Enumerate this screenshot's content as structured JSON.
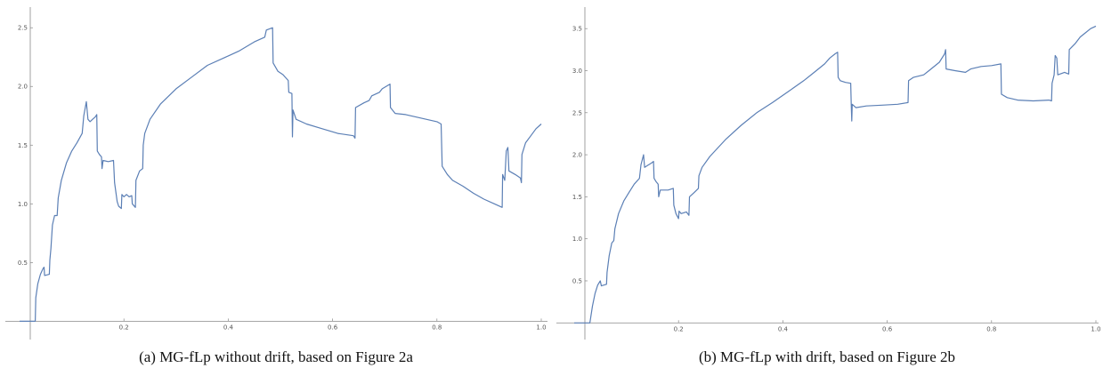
{
  "figures": [
    {
      "caption": "(a) MG-fLp without drift, based on Figure 2a"
    },
    {
      "caption": "(b) MG-fLp with drift, based on Figure 2b"
    }
  ],
  "chart_data": [
    {
      "type": "line",
      "title": "",
      "xlabel": "",
      "ylabel": "",
      "xlim": [
        0,
        1.0
      ],
      "ylim": [
        -0.05,
        2.6
      ],
      "x_ticks": [
        "0.2",
        "0.4",
        "0.6",
        "0.8",
        "1.0"
      ],
      "y_ticks": [
        "0.5",
        "1.0",
        "1.5",
        "2.0",
        "2.5"
      ],
      "line_color": "#5b7fb5",
      "series": [
        {
          "points": [
            [
              0.0,
              0.0
            ],
            [
              0.03,
              0.0
            ],
            [
              0.031,
              0.2
            ],
            [
              0.035,
              0.32
            ],
            [
              0.04,
              0.4
            ],
            [
              0.045,
              0.45
            ],
            [
              0.047,
              0.46
            ],
            [
              0.048,
              0.39
            ],
            [
              0.057,
              0.4
            ],
            [
              0.058,
              0.52
            ],
            [
              0.06,
              0.62
            ],
            [
              0.063,
              0.82
            ],
            [
              0.067,
              0.9
            ],
            [
              0.072,
              0.9
            ],
            [
              0.074,
              1.05
            ],
            [
              0.08,
              1.2
            ],
            [
              0.09,
              1.35
            ],
            [
              0.1,
              1.45
            ],
            [
              0.11,
              1.52
            ],
            [
              0.12,
              1.6
            ],
            [
              0.123,
              1.75
            ],
            [
              0.128,
              1.87
            ],
            [
              0.131,
              1.72
            ],
            [
              0.135,
              1.7
            ],
            [
              0.14,
              1.72
            ],
            [
              0.145,
              1.74
            ],
            [
              0.148,
              1.76
            ],
            [
              0.149,
              1.45
            ],
            [
              0.153,
              1.42
            ],
            [
              0.157,
              1.4
            ],
            [
              0.158,
              1.3
            ],
            [
              0.16,
              1.37
            ],
            [
              0.17,
              1.36
            ],
            [
              0.18,
              1.37
            ],
            [
              0.182,
              1.18
            ],
            [
              0.187,
              1.02
            ],
            [
              0.19,
              0.98
            ],
            [
              0.195,
              0.96
            ],
            [
              0.196,
              1.08
            ],
            [
              0.2,
              1.06
            ],
            [
              0.205,
              1.08
            ],
            [
              0.21,
              1.06
            ],
            [
              0.215,
              1.07
            ],
            [
              0.216,
              1.0
            ],
            [
              0.222,
              0.97
            ],
            [
              0.223,
              1.2
            ],
            [
              0.23,
              1.28
            ],
            [
              0.236,
              1.3
            ],
            [
              0.237,
              1.5
            ],
            [
              0.24,
              1.6
            ],
            [
              0.25,
              1.72
            ],
            [
              0.27,
              1.85
            ],
            [
              0.3,
              1.98
            ],
            [
              0.33,
              2.08
            ],
            [
              0.36,
              2.18
            ],
            [
              0.4,
              2.26
            ],
            [
              0.42,
              2.3
            ],
            [
              0.45,
              2.38
            ],
            [
              0.47,
              2.42
            ],
            [
              0.473,
              2.48
            ],
            [
              0.485,
              2.5
            ],
            [
              0.486,
              2.2
            ],
            [
              0.495,
              2.13
            ],
            [
              0.505,
              2.1
            ],
            [
              0.515,
              2.05
            ],
            [
              0.516,
              1.95
            ],
            [
              0.522,
              1.94
            ],
            [
              0.523,
              1.57
            ],
            [
              0.524,
              1.8
            ],
            [
              0.53,
              1.72
            ],
            [
              0.55,
              1.68
            ],
            [
              0.58,
              1.64
            ],
            [
              0.61,
              1.6
            ],
            [
              0.64,
              1.58
            ],
            [
              0.643,
              1.56
            ],
            [
              0.644,
              1.82
            ],
            [
              0.66,
              1.86
            ],
            [
              0.67,
              1.88
            ],
            [
              0.675,
              1.92
            ],
            [
              0.69,
              1.95
            ],
            [
              0.695,
              1.98
            ],
            [
              0.71,
              2.02
            ],
            [
              0.711,
              1.82
            ],
            [
              0.72,
              1.77
            ],
            [
              0.74,
              1.76
            ],
            [
              0.77,
              1.73
            ],
            [
              0.8,
              1.7
            ],
            [
              0.808,
              1.68
            ],
            [
              0.81,
              1.32
            ],
            [
              0.82,
              1.25
            ],
            [
              0.83,
              1.2
            ],
            [
              0.85,
              1.15
            ],
            [
              0.87,
              1.09
            ],
            [
              0.89,
              1.04
            ],
            [
              0.91,
              1.0
            ],
            [
              0.925,
              0.97
            ],
            [
              0.926,
              1.25
            ],
            [
              0.93,
              1.2
            ],
            [
              0.933,
              1.45
            ],
            [
              0.936,
              1.48
            ],
            [
              0.938,
              1.28
            ],
            [
              0.95,
              1.25
            ],
            [
              0.96,
              1.22
            ],
            [
              0.962,
              1.18
            ],
            [
              0.963,
              1.42
            ],
            [
              0.97,
              1.52
            ],
            [
              0.98,
              1.58
            ],
            [
              0.99,
              1.64
            ],
            [
              1.0,
              1.68
            ]
          ]
        }
      ]
    },
    {
      "type": "line",
      "title": "",
      "xlabel": "",
      "ylabel": "",
      "xlim": [
        0,
        1.0
      ],
      "ylim": [
        -0.05,
        3.65
      ],
      "x_ticks": [
        "0.2",
        "0.4",
        "0.6",
        "0.8",
        "1.0"
      ],
      "y_ticks": [
        "0.5",
        "1.0",
        "1.5",
        "2.0",
        "2.5",
        "3.0",
        "3.5"
      ],
      "line_color": "#5b7fb5",
      "series": [
        {
          "points": [
            [
              0.0,
              0.0
            ],
            [
              0.03,
              0.0
            ],
            [
              0.035,
              0.2
            ],
            [
              0.04,
              0.35
            ],
            [
              0.045,
              0.45
            ],
            [
              0.05,
              0.5
            ],
            [
              0.052,
              0.44
            ],
            [
              0.062,
              0.46
            ],
            [
              0.063,
              0.6
            ],
            [
              0.067,
              0.8
            ],
            [
              0.072,
              0.95
            ],
            [
              0.076,
              0.98
            ],
            [
              0.078,
              1.12
            ],
            [
              0.085,
              1.3
            ],
            [
              0.095,
              1.45
            ],
            [
              0.105,
              1.55
            ],
            [
              0.115,
              1.65
            ],
            [
              0.125,
              1.72
            ],
            [
              0.128,
              1.88
            ],
            [
              0.133,
              2.0
            ],
            [
              0.135,
              1.85
            ],
            [
              0.14,
              1.87
            ],
            [
              0.148,
              1.9
            ],
            [
              0.152,
              1.92
            ],
            [
              0.153,
              1.72
            ],
            [
              0.157,
              1.68
            ],
            [
              0.161,
              1.65
            ],
            [
              0.162,
              1.5
            ],
            [
              0.165,
              1.58
            ],
            [
              0.18,
              1.58
            ],
            [
              0.19,
              1.6
            ],
            [
              0.191,
              1.4
            ],
            [
              0.195,
              1.3
            ],
            [
              0.2,
              1.24
            ],
            [
              0.201,
              1.33
            ],
            [
              0.205,
              1.3
            ],
            [
              0.215,
              1.32
            ],
            [
              0.22,
              1.28
            ],
            [
              0.221,
              1.5
            ],
            [
              0.23,
              1.55
            ],
            [
              0.238,
              1.6
            ],
            [
              0.239,
              1.75
            ],
            [
              0.245,
              1.85
            ],
            [
              0.26,
              1.98
            ],
            [
              0.29,
              2.18
            ],
            [
              0.32,
              2.35
            ],
            [
              0.35,
              2.5
            ],
            [
              0.38,
              2.62
            ],
            [
              0.41,
              2.75
            ],
            [
              0.44,
              2.88
            ],
            [
              0.46,
              2.98
            ],
            [
              0.48,
              3.08
            ],
            [
              0.49,
              3.15
            ],
            [
              0.5,
              3.2
            ],
            [
              0.505,
              3.22
            ],
            [
              0.506,
              2.92
            ],
            [
              0.51,
              2.88
            ],
            [
              0.52,
              2.86
            ],
            [
              0.53,
              2.85
            ],
            [
              0.531,
              2.6
            ],
            [
              0.532,
              2.4
            ],
            [
              0.533,
              2.6
            ],
            [
              0.54,
              2.56
            ],
            [
              0.56,
              2.58
            ],
            [
              0.59,
              2.59
            ],
            [
              0.62,
              2.6
            ],
            [
              0.64,
              2.62
            ],
            [
              0.641,
              2.88
            ],
            [
              0.65,
              2.92
            ],
            [
              0.67,
              2.95
            ],
            [
              0.68,
              3.0
            ],
            [
              0.7,
              3.1
            ],
            [
              0.71,
              3.2
            ],
            [
              0.712,
              3.25
            ],
            [
              0.713,
              3.02
            ],
            [
              0.73,
              3.0
            ],
            [
              0.75,
              2.98
            ],
            [
              0.76,
              3.02
            ],
            [
              0.78,
              3.05
            ],
            [
              0.8,
              3.06
            ],
            [
              0.818,
              3.08
            ],
            [
              0.819,
              2.72
            ],
            [
              0.83,
              2.68
            ],
            [
              0.85,
              2.65
            ],
            [
              0.88,
              2.64
            ],
            [
              0.91,
              2.65
            ],
            [
              0.915,
              2.64
            ],
            [
              0.916,
              2.85
            ],
            [
              0.92,
              2.95
            ],
            [
              0.922,
              3.18
            ],
            [
              0.925,
              3.15
            ],
            [
              0.927,
              2.95
            ],
            [
              0.94,
              2.98
            ],
            [
              0.948,
              2.96
            ],
            [
              0.949,
              3.25
            ],
            [
              0.96,
              3.32
            ],
            [
              0.97,
              3.4
            ],
            [
              0.98,
              3.45
            ],
            [
              0.99,
              3.5
            ],
            [
              1.0,
              3.53
            ]
          ]
        }
      ]
    }
  ]
}
